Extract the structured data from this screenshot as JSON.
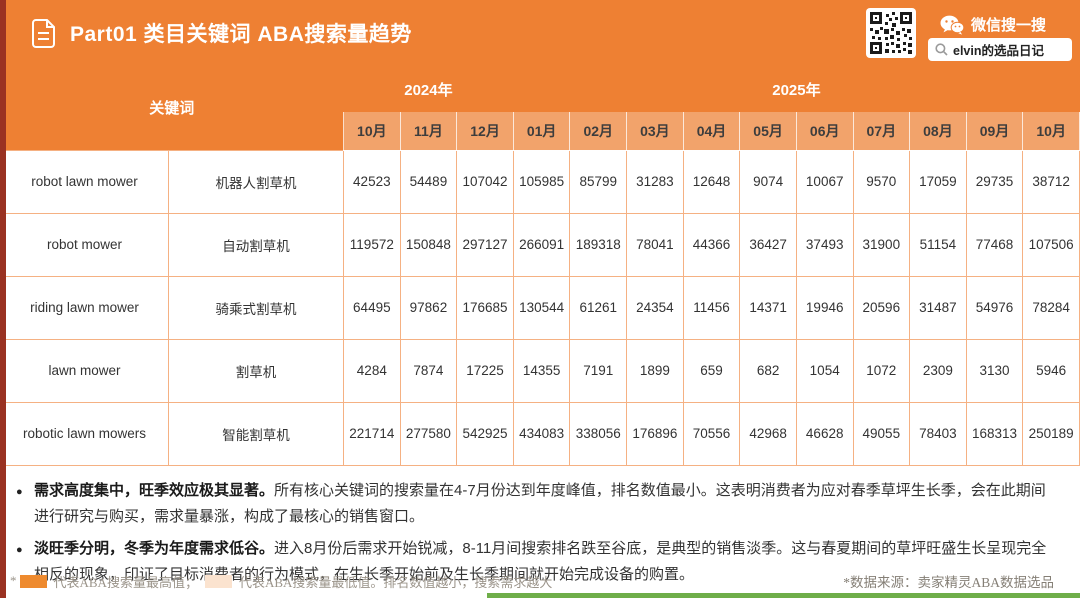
{
  "page": {
    "header": {
      "title": "Part01 类目关键词 ABA搜索量趋势",
      "wechat_search_label": "微信搜一搜",
      "search_value": "elvin的选品日记"
    },
    "table": {
      "keyword_header": "关键词",
      "year_groups": [
        {
          "label": "2024年",
          "span": 3
        },
        {
          "label": "2025年",
          "span": 10
        }
      ],
      "months": [
        "10月",
        "11月",
        "12月",
        "01月",
        "02月",
        "03月",
        "04月",
        "05月",
        "06月",
        "07月",
        "08月",
        "09月",
        "10月"
      ],
      "rows": [
        {
          "keyword_en": "robot lawn mower",
          "keyword_cn": "机器人割草机",
          "values": [
            42523,
            54489,
            107042,
            105985,
            85799,
            31283,
            12648,
            9074,
            10067,
            9570,
            17059,
            29735,
            38712
          ]
        },
        {
          "keyword_en": "robot mower",
          "keyword_cn": "自动割草机",
          "values": [
            119572,
            150848,
            297127,
            266091,
            189318,
            78041,
            44366,
            36427,
            37493,
            31900,
            51154,
            77468,
            107506
          ]
        },
        {
          "keyword_en": "riding lawn mower",
          "keyword_cn": "骑乘式割草机",
          "values": [
            64495,
            97862,
            176685,
            130544,
            61261,
            24354,
            11456,
            14371,
            19946,
            20596,
            31487,
            54976,
            78284
          ]
        },
        {
          "keyword_en": "lawn mower",
          "keyword_cn": "割草机",
          "values": [
            4284,
            7874,
            17225,
            14355,
            7191,
            1899,
            659,
            682,
            1054,
            1072,
            2309,
            3130,
            5946
          ]
        },
        {
          "keyword_en": "robotic lawn mowers",
          "keyword_cn": "智能割草机",
          "values": [
            221714,
            277580,
            542925,
            434083,
            338056,
            176896,
            70556,
            42968,
            46628,
            49055,
            78403,
            168313,
            250189
          ]
        }
      ]
    },
    "insights": [
      {
        "bold": "需求高度集中，旺季效应极其显著。",
        "text": "所有核心关键词的搜索量在4-7月份达到年度峰值，排名数值最小。这表明消费者为应对春季草坪生长季，会在此期间进行研究与购买，需求量暴涨，构成了最核心的销售窗口。"
      },
      {
        "bold": "淡旺季分明，冬季为年度需求低谷。",
        "text": "进入8月份后需求开始锐减，8-11月间搜索排名跌至谷底，是典型的销售淡季。这与春夏期间的草坪旺盛生长呈现完全相反的现象，印证了目标消费者的行为模式，在生长季开始前及生长季期间就开始完成设备的购置。"
      }
    ],
    "footer": {
      "legend_star": "*",
      "legend_high": "代表ABA搜索量最高值；",
      "legend_low": "代表ABA搜索量最低值。排名数值越小，搜索需求越大",
      "source": "*数据来源：卖家精灵ABA数据选品"
    },
    "colors": {
      "accent": "#EE8033",
      "month_header_bg": "#F2A36B",
      "highlight_peak": "#EE8A2E",
      "highlight_trough": "#FBE3CF",
      "grid_line": "#F5B183",
      "left_strip": "#9A3222",
      "bottom_strip": "#6FAE49"
    }
  }
}
